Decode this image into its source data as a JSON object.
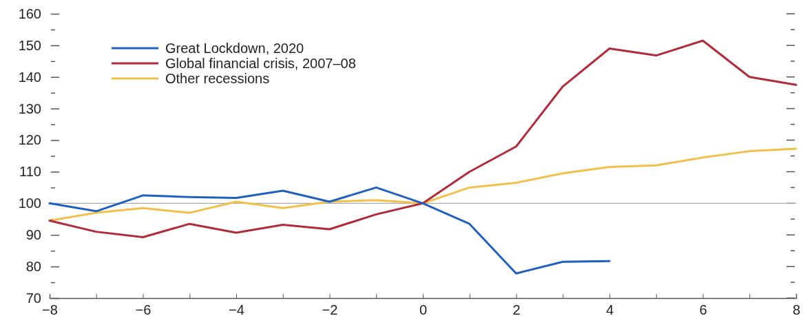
{
  "chart_data": {
    "type": "line",
    "x": [
      -8,
      -7,
      -6,
      -5,
      -4,
      -3,
      -2,
      -1,
      0,
      1,
      2,
      3,
      4,
      5,
      6,
      7,
      8
    ],
    "series": [
      {
        "name": "Great Lockdown, 2020",
        "color": "#1f5fbf",
        "values": [
          100,
          97.5,
          102.5,
          102,
          101.7,
          104,
          100.5,
          105,
          100,
          93.5,
          77.8,
          81.5,
          81.7,
          null,
          null,
          null,
          null
        ]
      },
      {
        "name": "Global financial crisis, 2007–08",
        "color": "#b02a3a",
        "values": [
          94.5,
          91,
          89.3,
          93.5,
          90.7,
          93.2,
          91.8,
          96.5,
          100,
          110,
          118,
          137,
          149,
          146.8,
          151.5,
          140,
          137.5
        ]
      },
      {
        "name": "Other recessions",
        "color": "#f2c04a",
        "values": [
          94.5,
          97,
          98.5,
          97,
          100.5,
          98.5,
          100.5,
          101,
          100,
          105,
          106.5,
          109.5,
          111.5,
          112,
          114.5,
          116.5,
          117.3
        ]
      }
    ],
    "xlim": [
      -8,
      8
    ],
    "xticks": [
      -8,
      {
        "value": -7,
        "label": null
      },
      -6,
      {
        "value": -5,
        "label": null
      },
      -4,
      {
        "value": -3,
        "label": null
      },
      -2,
      {
        "value": -1,
        "label": null
      },
      0,
      {
        "value": 1,
        "label": null
      },
      2,
      {
        "value": 3,
        "label": null
      },
      4,
      {
        "value": 5,
        "label": null
      },
      6,
      {
        "value": 7,
        "label": null
      },
      8
    ],
    "ylim": [
      70,
      160
    ],
    "yticks": [
      70,
      {
        "value": 75,
        "label": null
      },
      80,
      {
        "value": 85,
        "label": null
      },
      90,
      {
        "value": 95,
        "label": null
      },
      100,
      {
        "value": 105,
        "label": null
      },
      110,
      {
        "value": 115,
        "label": null
      },
      120,
      {
        "value": 125,
        "label": null
      },
      130,
      {
        "value": 135,
        "label": null
      },
      140,
      {
        "value": 145,
        "label": null
      },
      150,
      {
        "value": 155,
        "label": null
      },
      160
    ],
    "ref_lines": [
      {
        "axis": "y",
        "value": 100,
        "color": "#aaaaaa"
      }
    ],
    "legend": "top left",
    "marker": "none",
    "line_style": "solid",
    "grid": false
  }
}
